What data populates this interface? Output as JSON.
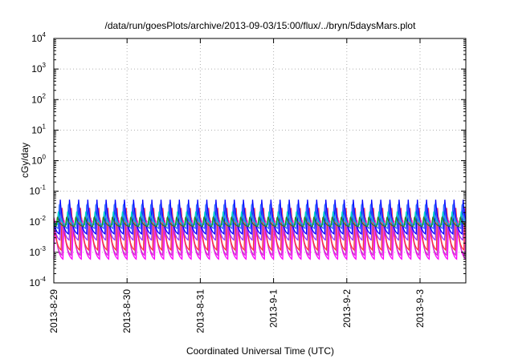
{
  "chart_data": {
    "type": "line",
    "title": "/data/run/goesPlots/archive/2013-09-03/15:00/flux/../bryn/5daysMars.plot",
    "xlabel": "Coordinated Universal Time (UTC)",
    "ylabel": "cGy/day",
    "yscale": "log",
    "ylim": [
      0.0001,
      10000
    ],
    "xlim": [
      "2013-08-29 00:00",
      "2013-09-03 15:00"
    ],
    "grid": true,
    "x_ticks": [
      "2013-8-29",
      "2013-8-30",
      "2013-8-31",
      "2013-9-1",
      "2013-9-2",
      "2013-9-3"
    ],
    "y_ticks": [
      {
        "base": "10",
        "exp": "4",
        "value": 10000
      },
      {
        "base": "10",
        "exp": "3",
        "value": 1000
      },
      {
        "base": "10",
        "exp": "2",
        "value": 100
      },
      {
        "base": "10",
        "exp": "1",
        "value": 10
      },
      {
        "base": "10",
        "exp": "0",
        "value": 1
      },
      {
        "base": "10",
        "exp": "-1",
        "value": 0.1
      },
      {
        "base": "10",
        "exp": "-2",
        "value": 0.01
      },
      {
        "base": "10",
        "exp": "-3",
        "value": 0.001
      },
      {
        "base": "10",
        "exp": "-4",
        "value": 0.0001
      }
    ],
    "periodic_pattern": {
      "period_hours": 3,
      "days": 5.625,
      "note_values": "sawtooth pulses; peak and trough values per series (cGy/day)"
    },
    "series": [
      {
        "color": "#ff00ff",
        "peak": 0.012,
        "trough": 0.0006
      },
      {
        "color": "#cc33cc",
        "peak": 0.018,
        "trough": 0.0008
      },
      {
        "color": "#ff3333",
        "peak": 0.03,
        "trough": 0.0012
      },
      {
        "color": "#9933ff",
        "peak": 0.035,
        "trough": 0.0025
      },
      {
        "color": "#0000ff",
        "peak": 0.055,
        "trough": 0.004
      },
      {
        "color": "#3366ff",
        "peak": 0.045,
        "trough": 0.006
      },
      {
        "color": "#00cccc",
        "peak": 0.022,
        "trough": 0.008
      },
      {
        "color": "#228b22",
        "peak": 0.015,
        "trough": 0.007
      }
    ]
  }
}
